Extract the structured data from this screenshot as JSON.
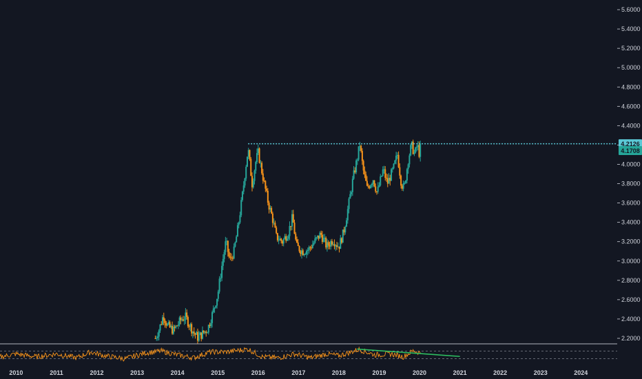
{
  "colors": {
    "background": "#131722",
    "axis_text": "#d1d4dc",
    "candle_up": "#26a69a",
    "candle_down": "#f7931a",
    "resistance_line": "#5bc8d6",
    "current_price_badge": "#26a69a",
    "resistance_badge": "#5bc8d6",
    "rsi_line": "#f7931a",
    "rsi_trend_line": "#2dbe60",
    "rsi_band": "#b2b5be"
  },
  "chart_data": {
    "type": "candlestick",
    "title": "",
    "xlabel": "",
    "ylabel": "",
    "ylim": [
      2.15,
      5.7
    ],
    "y_ticks": [
      "2.2000",
      "2.4000",
      "2.6000",
      "2.8000",
      "3.0000",
      "3.2000",
      "3.4000",
      "3.6000",
      "3.8000",
      "4.0000",
      "4.2000",
      "4.4000",
      "4.6000",
      "4.8000",
      "5.0000",
      "5.2000",
      "5.4000",
      "5.6000"
    ],
    "x_ticks": [
      "2010",
      "2011",
      "2012",
      "2013",
      "2014",
      "2015",
      "2016",
      "2017",
      "2018",
      "2019",
      "2020",
      "2021",
      "2022",
      "2023",
      "2024"
    ],
    "xlim": [
      2009.6,
      2024.9
    ],
    "grid": false,
    "price_path": [
      [
        2013.45,
        2.2
      ],
      [
        2013.55,
        2.3
      ],
      [
        2013.65,
        2.44
      ],
      [
        2013.75,
        2.33
      ],
      [
        2013.9,
        2.28
      ],
      [
        2014.0,
        2.34
      ],
      [
        2014.1,
        2.4
      ],
      [
        2014.2,
        2.42
      ],
      [
        2014.3,
        2.34
      ],
      [
        2014.4,
        2.26
      ],
      [
        2014.5,
        2.21
      ],
      [
        2014.6,
        2.24
      ],
      [
        2014.75,
        2.3
      ],
      [
        2014.9,
        2.5
      ],
      [
        2015.0,
        2.66
      ],
      [
        2015.1,
        2.95
      ],
      [
        2015.2,
        3.2
      ],
      [
        2015.3,
        3.0
      ],
      [
        2015.4,
        3.1
      ],
      [
        2015.5,
        3.35
      ],
      [
        2015.6,
        3.65
      ],
      [
        2015.7,
        4.0
      ],
      [
        2015.75,
        4.16
      ],
      [
        2015.85,
        3.8
      ],
      [
        2015.95,
        4.05
      ],
      [
        2016.0,
        4.12
      ],
      [
        2016.08,
        3.95
      ],
      [
        2016.15,
        3.8
      ],
      [
        2016.25,
        3.6
      ],
      [
        2016.35,
        3.45
      ],
      [
        2016.45,
        3.25
      ],
      [
        2016.6,
        3.2
      ],
      [
        2016.75,
        3.3
      ],
      [
        2016.85,
        3.45
      ],
      [
        2016.95,
        3.15
      ],
      [
        2017.1,
        3.1
      ],
      [
        2017.25,
        3.12
      ],
      [
        2017.4,
        3.2
      ],
      [
        2017.55,
        3.28
      ],
      [
        2017.7,
        3.15
      ],
      [
        2017.85,
        3.22
      ],
      [
        2018.0,
        3.15
      ],
      [
        2018.12,
        3.3
      ],
      [
        2018.25,
        3.6
      ],
      [
        2018.35,
        3.85
      ],
      [
        2018.45,
        4.05
      ],
      [
        2018.52,
        4.21
      ],
      [
        2018.6,
        3.95
      ],
      [
        2018.7,
        3.75
      ],
      [
        2018.85,
        3.85
      ],
      [
        2018.95,
        3.7
      ],
      [
        2019.1,
        3.95
      ],
      [
        2019.2,
        3.8
      ],
      [
        2019.35,
        3.95
      ],
      [
        2019.45,
        4.1
      ],
      [
        2019.55,
        3.8
      ],
      [
        2019.62,
        3.75
      ],
      [
        2019.72,
        4.05
      ],
      [
        2019.8,
        4.2
      ],
      [
        2019.88,
        4.1
      ],
      [
        2019.95,
        4.21
      ],
      [
        2019.98,
        4.1
      ],
      [
        2020.02,
        4.17
      ]
    ],
    "last_price": "4.1708",
    "resistance": {
      "value": 4.2126,
      "label": "4.2126",
      "start_x": 2015.75
    },
    "rsi_panel": {
      "band_upper": 70,
      "band_lower": 30,
      "rsi_path": [
        [
          2009.6,
          40
        ],
        [
          2010.0,
          55
        ],
        [
          2010.5,
          40
        ],
        [
          2011.0,
          55
        ],
        [
          2011.5,
          35
        ],
        [
          2011.85,
          65
        ],
        [
          2012.2,
          45
        ],
        [
          2012.7,
          30
        ],
        [
          2013.2,
          60
        ],
        [
          2013.6,
          70
        ],
        [
          2014.0,
          50
        ],
        [
          2014.4,
          35
        ],
        [
          2014.8,
          65
        ],
        [
          2015.2,
          65
        ],
        [
          2015.75,
          80
        ],
        [
          2016.1,
          40
        ],
        [
          2016.5,
          35
        ],
        [
          2016.9,
          55
        ],
        [
          2017.3,
          35
        ],
        [
          2017.7,
          55
        ],
        [
          2018.0,
          45
        ],
        [
          2018.5,
          78
        ],
        [
          2018.9,
          50
        ],
        [
          2019.3,
          55
        ],
        [
          2019.6,
          40
        ],
        [
          2019.85,
          72
        ],
        [
          2020.02,
          60
        ]
      ],
      "trend_line": [
        [
          2018.45,
          80
        ],
        [
          2021.0,
          42
        ]
      ]
    }
  }
}
